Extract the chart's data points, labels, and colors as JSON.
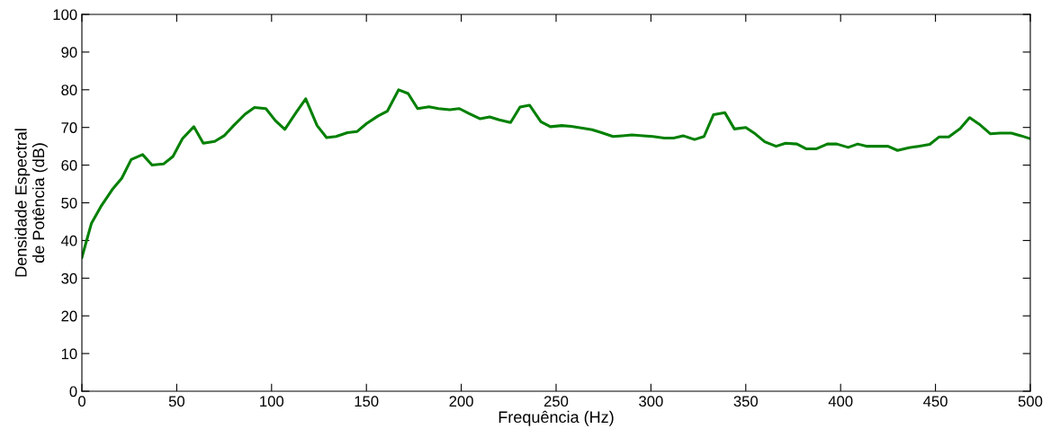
{
  "chart_data": {
    "type": "line",
    "xlabel": "Frequência (Hz)",
    "ylabel": "Densidade Espectral\nde Potência (dB)",
    "xlim": [
      0,
      500
    ],
    "xticks": [
      0,
      50,
      100,
      150,
      200,
      250,
      300,
      350,
      400,
      450,
      500
    ],
    "ylim": [
      0,
      100
    ],
    "yticks": [
      0,
      10,
      20,
      30,
      40,
      50,
      60,
      70,
      80,
      90,
      100
    ],
    "grid": false,
    "legend": false,
    "marker": "none",
    "line_style": "solid",
    "series": [
      {
        "color": "#008000",
        "x": [
          0,
          5,
          10,
          16,
          21,
          26,
          32,
          37,
          43,
          48,
          53,
          59,
          64,
          70,
          75,
          80,
          86,
          91,
          97,
          102,
          107,
          113,
          118,
          124,
          129,
          134,
          140,
          145,
          150,
          156,
          161,
          167,
          172,
          177,
          183,
          188,
          194,
          199,
          204,
          210,
          215,
          220,
          226,
          231,
          236,
          242,
          247,
          253,
          258,
          264,
          269,
          274,
          280,
          285,
          290,
          296,
          301,
          307,
          312,
          317,
          323,
          328,
          333,
          339,
          344,
          350,
          355,
          360,
          366,
          371,
          377,
          382,
          387,
          393,
          398,
          404,
          409,
          414,
          420,
          425,
          430,
          436,
          441,
          447,
          452,
          457,
          463,
          468,
          473,
          479,
          484,
          490,
          495,
          500
        ],
        "values": [
          35.5,
          44.5,
          49,
          53.5,
          56.5,
          61.5,
          62.8,
          60,
          60.3,
          62.3,
          67,
          70.2,
          65.8,
          66.3,
          67.8,
          70.5,
          73.5,
          75.3,
          75,
          71.8,
          69.5,
          74,
          77.6,
          70.5,
          67.3,
          67.6,
          68.6,
          68.9,
          71,
          73,
          74.3,
          80,
          79,
          75,
          75.5,
          75,
          74.7,
          75,
          73.7,
          72.3,
          72.8,
          72,
          71.3,
          75.4,
          75.9,
          71.5,
          70.2,
          70.5,
          70.3,
          69.8,
          69.4,
          68.6,
          67.6,
          67.8,
          68,
          67.8,
          67.6,
          67.2,
          67.2,
          67.8,
          66.8,
          67.6,
          73.4,
          73.9,
          69.6,
          70,
          68.3,
          66.2,
          65,
          65.8,
          65.6,
          64.3,
          64.3,
          65.6,
          65.6,
          64.7,
          65.6,
          65,
          65,
          65,
          63.9,
          64.6,
          65,
          65.5,
          67.5,
          67.5,
          69.7,
          72.6,
          70.9,
          68.3,
          68.5,
          68.5,
          67.8,
          67
        ]
      }
    ]
  }
}
